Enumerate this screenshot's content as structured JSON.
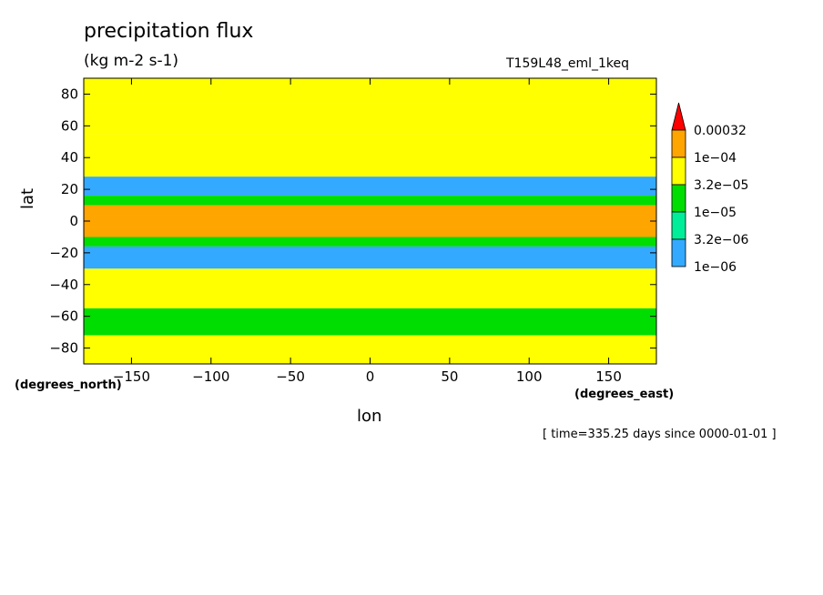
{
  "chart_data": {
    "type": "heatmap",
    "title": "precipitation flux",
    "units": "(kg m-2 s-1)",
    "run_id": "T159L48_eml_1keq",
    "xlabel": "lon",
    "ylabel": "lat",
    "x_unit": "(degrees_east)",
    "y_unit": "(degrees_north)",
    "xlim": [
      -180,
      180
    ],
    "ylim": [
      -90,
      90
    ],
    "x_ticks": [
      -150,
      -100,
      -50,
      0,
      50,
      100,
      150
    ],
    "y_ticks": [
      80,
      60,
      40,
      20,
      0,
      -20,
      -40,
      -60,
      -80
    ],
    "footer": "[ time=335.25 days since 0000-01-01 ]",
    "colorbar": {
      "levels": [
        "0.00032",
        "1e-04",
        "3.2e-05",
        "1e-05",
        "3.2e-06",
        "1e-06"
      ],
      "colors": [
        "#ff0000",
        "#ffa500",
        "#ffff00",
        "#00dd00",
        "#00ee99",
        "#33aaff"
      ],
      "above_color": "#ff0000",
      "below_color": "#ffffff"
    },
    "band_profile": [
      {
        "lat_min": 74,
        "lat_max": 90,
        "level": 2
      },
      {
        "lat_min": 55,
        "lat_max": 74,
        "level": 2
      },
      {
        "lat_min": 28,
        "lat_max": 55,
        "level": 2
      },
      {
        "lat_min": 16,
        "lat_max": 28,
        "level": 5
      },
      {
        "lat_min": 10,
        "lat_max": 16,
        "level": 3
      },
      {
        "lat_min": 4,
        "lat_max": 10,
        "level": 1
      },
      {
        "lat_min": -4,
        "lat_max": 4,
        "level": 1
      },
      {
        "lat_min": -10,
        "lat_max": -4,
        "level": 1
      },
      {
        "lat_min": -16,
        "lat_max": -10,
        "level": 3
      },
      {
        "lat_min": -30,
        "lat_max": -16,
        "level": 5
      },
      {
        "lat_min": -55,
        "lat_max": -30,
        "level": 2
      },
      {
        "lat_min": -72,
        "lat_max": -55,
        "level": 3
      },
      {
        "lat_min": -90,
        "lat_max": -72,
        "level": 2
      }
    ]
  }
}
